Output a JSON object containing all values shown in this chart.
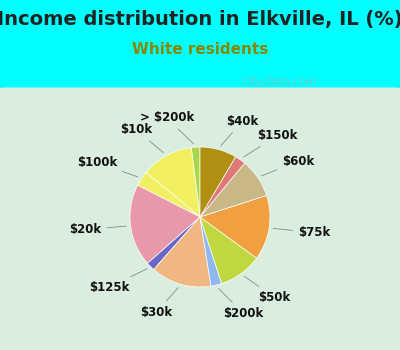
{
  "title": "Income distribution in Elkville, IL (%)",
  "subtitle": "White residents",
  "background_color": "#00ffff",
  "chart_bg": "#daeee0",
  "labels": [
    "> $200k",
    "$10k",
    "$100k",
    "$20k",
    "$125k",
    "$30k",
    "$200k",
    "$50k",
    "$75k",
    "$60k",
    "$150k",
    "$40k"
  ],
  "sizes": [
    2.0,
    12.0,
    3.5,
    19.0,
    2.0,
    14.0,
    2.5,
    10.0,
    15.0,
    9.0,
    2.5,
    8.5
  ],
  "colors": [
    "#a8d848",
    "#f0f060",
    "#f0f060",
    "#e898a8",
    "#6868c8",
    "#f0b880",
    "#90b8f0",
    "#c0d840",
    "#f0a040",
    "#c8b888",
    "#e07878",
    "#b09010"
  ],
  "startangle": 90,
  "label_fontsize": 8.5,
  "title_fontsize": 14,
  "subtitle_fontsize": 11,
  "subtitle_color": "#888800",
  "watermark": "City-Data.com"
}
